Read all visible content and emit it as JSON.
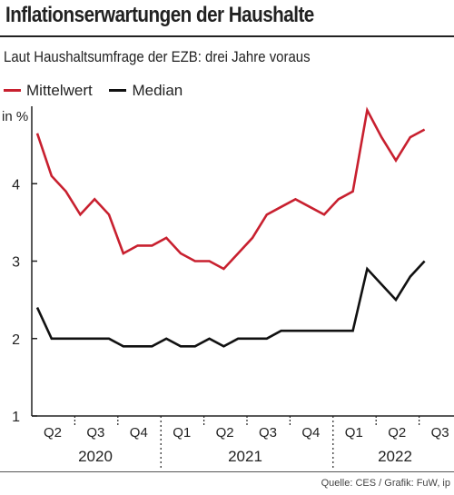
{
  "header": {
    "title": "Inflationserwartungen der Haushalte",
    "subtitle": "Laut Haushaltsumfrage der EZB: drei Jahre voraus",
    "source": "Quelle: CES / Grafik: FuW, ip"
  },
  "chart_data": {
    "type": "line",
    "unit_label": "in %",
    "ylim": [
      1,
      5
    ],
    "y_ticks": [
      1,
      2,
      3,
      4
    ],
    "grid": false,
    "legend_position": "top-left",
    "quarter_labels": [
      "Q2",
      "Q3",
      "Q4",
      "Q1",
      "Q2",
      "Q3",
      "Q4",
      "Q1",
      "Q2",
      "Q3"
    ],
    "year_labels": [
      "2020",
      "2021",
      "2022"
    ],
    "x_frequency": "monthly, Apr 2020 – Aug 2022",
    "series": [
      {
        "name": "Mittelwert",
        "color": "#c8202f",
        "values": [
          4.65,
          4.1,
          3.9,
          3.6,
          3.8,
          3.6,
          3.1,
          3.2,
          3.2,
          3.3,
          3.1,
          3.0,
          3.0,
          2.9,
          3.1,
          3.3,
          3.6,
          3.7,
          3.8,
          3.7,
          3.6,
          3.8,
          3.9,
          4.95,
          4.6,
          4.3,
          4.6,
          4.7
        ]
      },
      {
        "name": "Median",
        "color": "#111111",
        "values": [
          2.4,
          2.0,
          2.0,
          2.0,
          2.0,
          2.0,
          1.9,
          1.9,
          1.9,
          2.0,
          1.9,
          1.9,
          2.0,
          1.9,
          2.0,
          2.0,
          2.0,
          2.1,
          2.1,
          2.1,
          2.1,
          2.1,
          2.1,
          2.9,
          2.7,
          2.5,
          2.8,
          3.0
        ]
      }
    ]
  }
}
